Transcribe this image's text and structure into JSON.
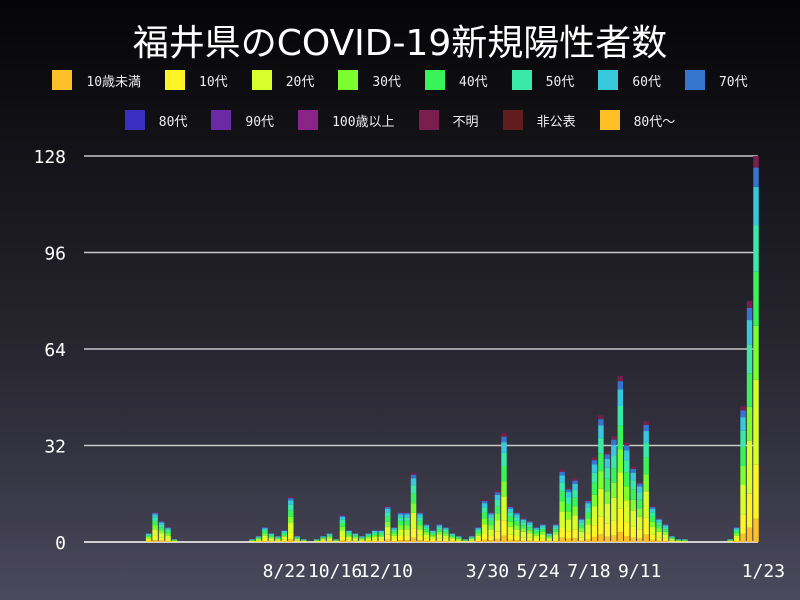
{
  "chart_data": {
    "type": "bar",
    "title": "福井県のCOVID-19新規陽性者数",
    "legend": [
      {
        "label": "10歳未満",
        "color": "#ffbf27"
      },
      {
        "label": "10代",
        "color": "#fff426"
      },
      {
        "label": "20代",
        "color": "#d8ff2c"
      },
      {
        "label": "30代",
        "color": "#7dff2f"
      },
      {
        "label": "40代",
        "color": "#38f458"
      },
      {
        "label": "50代",
        "color": "#38eaa6"
      },
      {
        "label": "60代",
        "color": "#38c8dc"
      },
      {
        "label": "70代",
        "color": "#3575d0"
      },
      {
        "label": "80代",
        "color": "#3a2ec0"
      },
      {
        "label": "90代",
        "color": "#6a2aa6"
      },
      {
        "label": "100歳以上",
        "color": "#8a2488"
      },
      {
        "label": "不明",
        "color": "#7a1e4e"
      },
      {
        "label": "非公表",
        "color": "#611c1e"
      },
      {
        "label": "80代〜",
        "color": "#ffbf27"
      }
    ],
    "legend_placement": "top",
    "ylim": [
      0,
      128
    ],
    "yticks": [
      "0",
      "32",
      "64",
      "96",
      "128"
    ],
    "xticks": [
      "8/22",
      "10/16",
      "12/10",
      "3/30",
      "5/24",
      "7/18",
      "9/11",
      "1/23"
    ],
    "grid": true,
    "x_start": "2020-01-18",
    "x_interval_days": 7,
    "values": [
      0,
      0,
      0,
      0,
      0,
      0,
      0,
      0,
      0,
      0,
      3,
      10,
      7,
      5,
      1,
      0,
      0,
      0,
      0,
      0,
      0,
      0,
      0,
      0,
      0,
      0,
      1,
      2,
      5,
      3,
      2,
      4,
      15,
      2,
      1,
      0,
      1,
      2,
      3,
      1,
      9,
      4,
      3,
      2,
      3,
      4,
      4,
      12,
      5,
      10,
      10,
      23,
      10,
      6,
      4,
      6,
      5,
      3,
      2,
      1,
      2,
      5,
      14,
      10,
      17,
      36,
      12,
      10,
      8,
      7,
      5,
      6,
      3,
      6,
      24,
      18,
      21,
      8,
      14,
      28,
      42,
      30,
      35,
      55,
      33,
      25,
      20,
      40,
      12,
      8,
      6,
      2,
      1,
      1,
      0,
      0,
      0,
      0,
      0,
      0,
      1,
      5,
      45,
      80,
      128
    ]
  }
}
